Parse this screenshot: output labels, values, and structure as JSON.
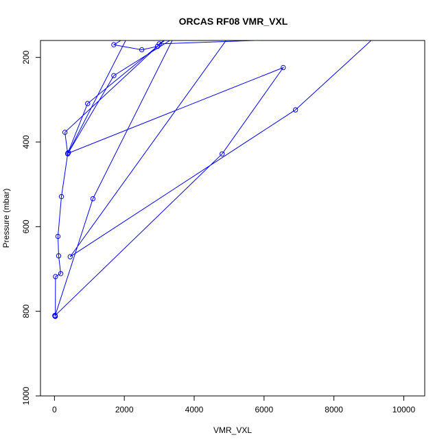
{
  "chart_data": {
    "type": "scatter",
    "title": "ORCAS RF08 VMR_VXL",
    "xlabel": "VMR_VXL",
    "ylabel": "Pressure (mbar)",
    "xlim": [
      -400,
      10600
    ],
    "ylim": [
      1000,
      160
    ],
    "y_reversed": true,
    "x_ticks": [
      0,
      2000,
      4000,
      6000,
      8000,
      10000
    ],
    "y_ticks": [
      200,
      400,
      600,
      800,
      1000
    ],
    "grid": false,
    "line_color": "#0000ff",
    "series": [
      {
        "x": [
          20,
          15,
          10,
          25,
          30,
          180,
          120,
          100,
          200,
          380,
          300,
          2950,
          2500,
          1700,
          2100,
          400,
          1700,
          3400,
          1100,
          20,
          4800,
          6550,
          380,
          950,
          3300,
          3000,
          9200,
          6900,
          450,
          5000
        ],
        "y": [
          812,
          811,
          810,
          812,
          718,
          711,
          669,
          623,
          529,
          428,
          377,
          174,
          182,
          170,
          150,
          425,
          243,
          155,
          534,
          810,
          428,
          224,
          427,
          309,
          150,
          168,
          150,
          324,
          671,
          150
        ]
      }
    ]
  }
}
